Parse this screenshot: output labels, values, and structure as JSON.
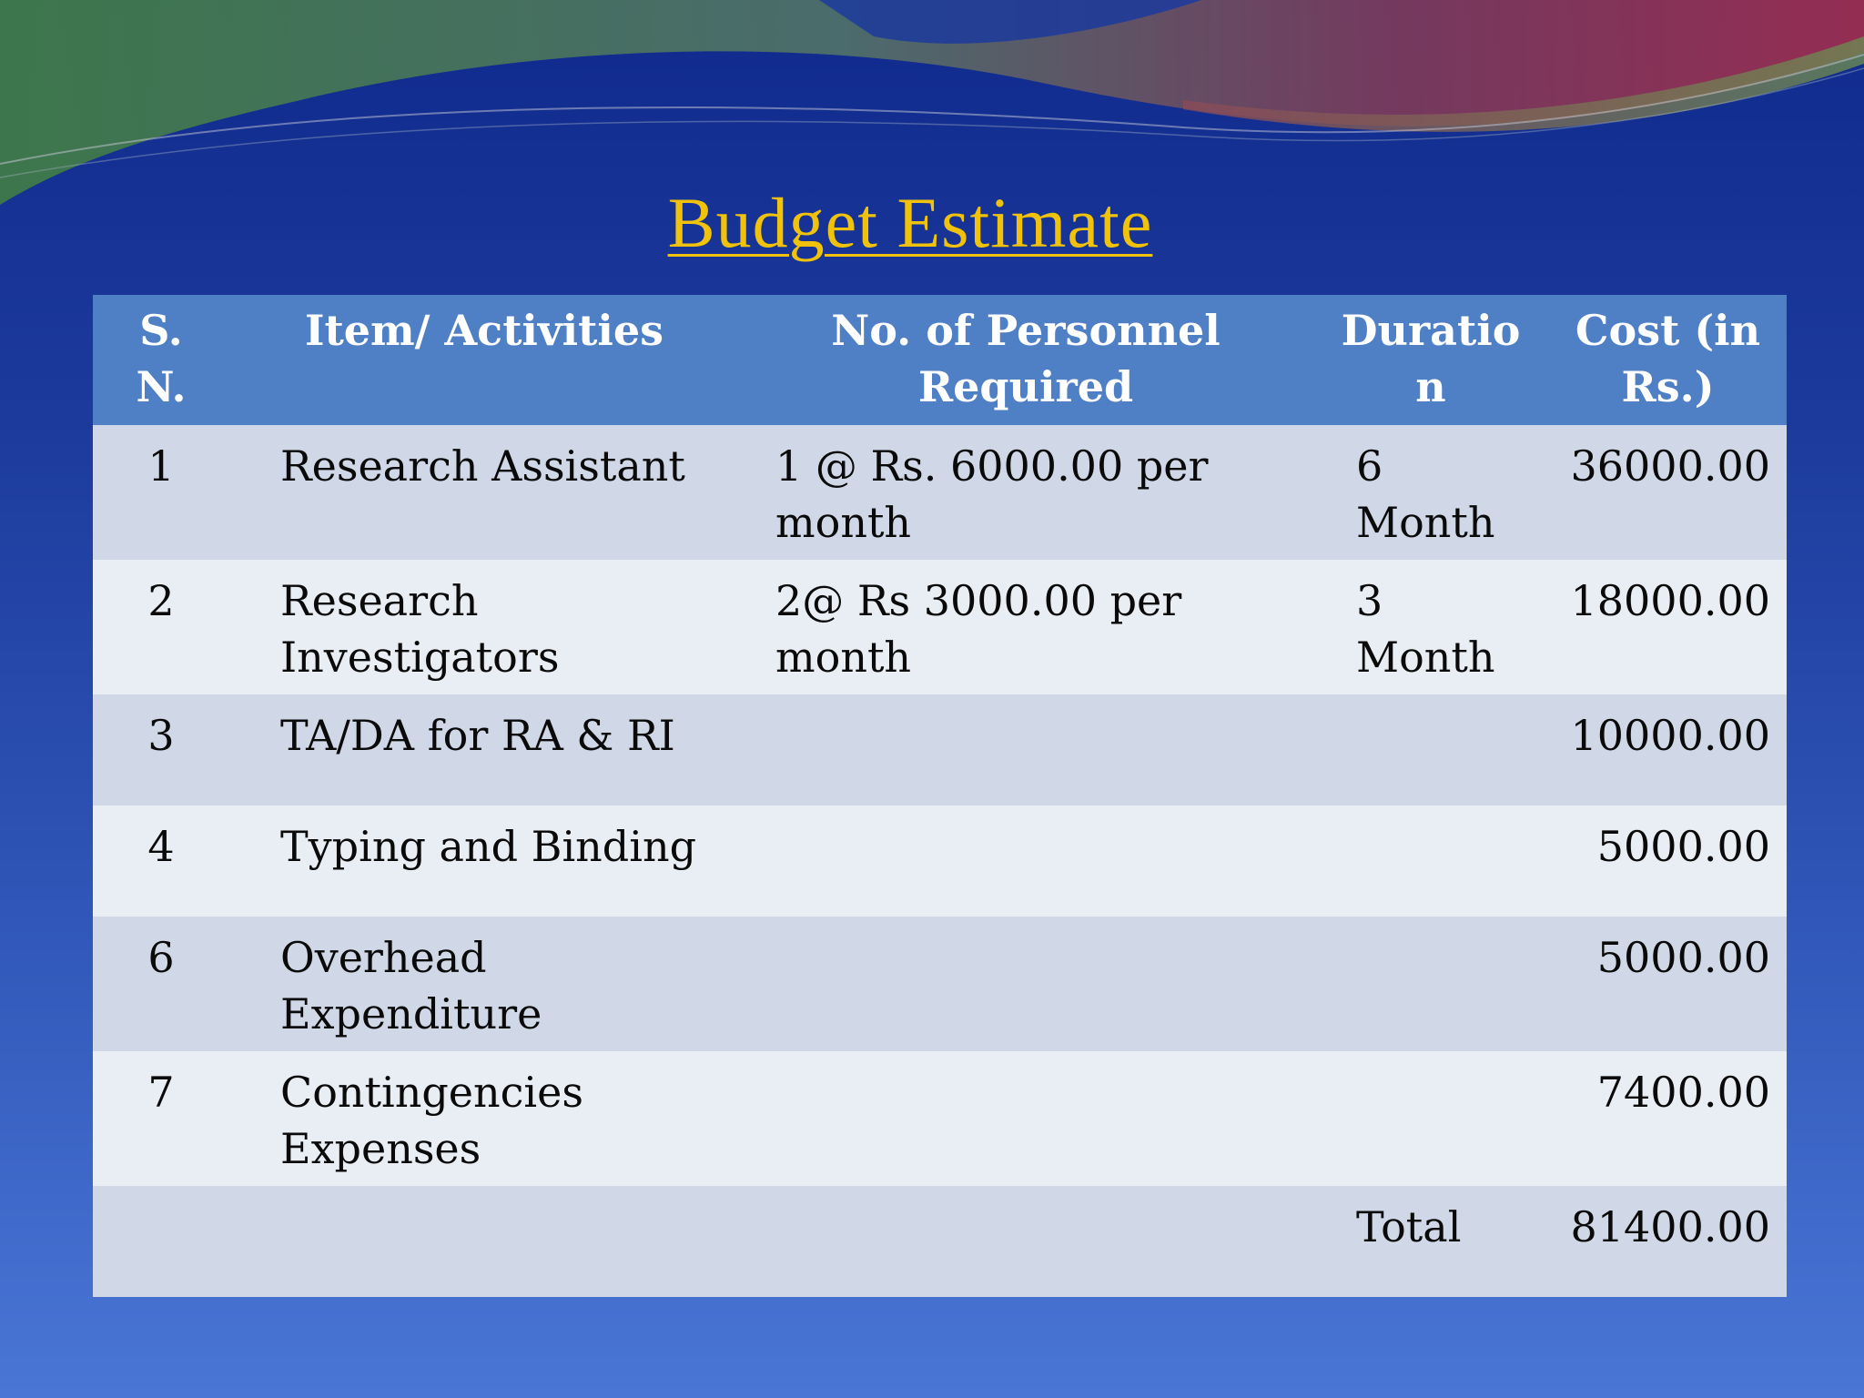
{
  "slide": {
    "title": "Budget Estimate"
  },
  "table": {
    "headers": {
      "sn": "S. N.",
      "item": "Item/ Activities",
      "personnel": "No. of Personnel Required",
      "duration": "Duratio n",
      "cost": "Cost (in Rs.)"
    },
    "rows": [
      {
        "sn": "1",
        "item": "Research Assistant",
        "personnel": "1 @ Rs. 6000.00 per month",
        "duration": "6 Month",
        "cost": "36000.00"
      },
      {
        "sn": "2",
        "item": "Research Investigators",
        "personnel": "2@ Rs 3000.00 per month",
        "duration": "3 Month",
        "cost": "18000.00"
      },
      {
        "sn": "3",
        "item": "TA/DA for RA & RI",
        "personnel": "",
        "duration": "",
        "cost": "10000.00"
      },
      {
        "sn": "4",
        "item": "Typing and Binding",
        "personnel": "",
        "duration": "",
        "cost": "5000.00"
      },
      {
        "sn": "6",
        "item": "Overhead Expenditure",
        "personnel": "",
        "duration": "",
        "cost": "5000.00"
      },
      {
        "sn": "7",
        "item": "Contingencies Expenses",
        "personnel": "",
        "duration": "",
        "cost": "7400.00"
      }
    ],
    "total": {
      "label": "Total",
      "cost": "81400.00"
    }
  },
  "colors": {
    "title": "#f0c20c",
    "header_bg": "#4f7fc4",
    "row_odd": "#d0d8e8",
    "row_even": "#e9edf4",
    "background_top": "#0f2a8c",
    "background_bottom": "#4a76d6"
  }
}
